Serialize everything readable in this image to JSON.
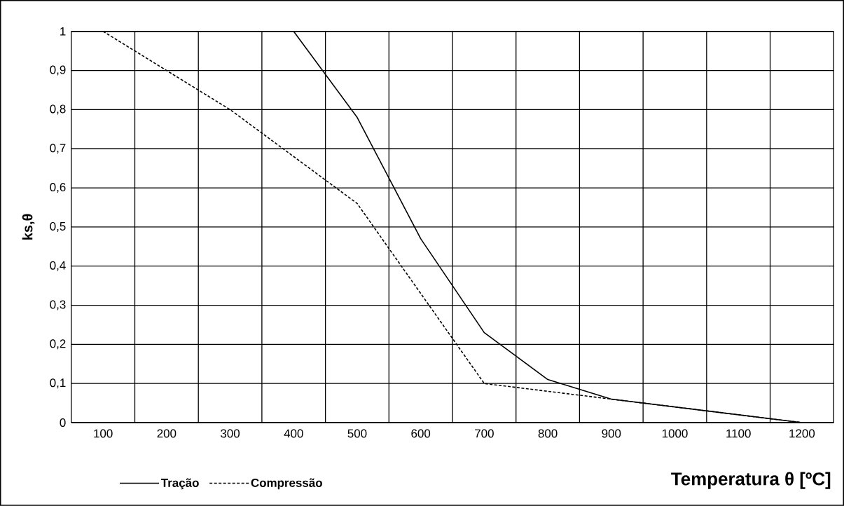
{
  "chart_data": {
    "type": "line",
    "xlabel": "Temperatura θ [ºC]",
    "ylabel": "ks,θ",
    "xlim": [
      50,
      1250
    ],
    "ylim": [
      0,
      1
    ],
    "xticks": [
      100,
      200,
      300,
      400,
      500,
      600,
      700,
      800,
      900,
      1000,
      1100,
      1200
    ],
    "yticks": [
      0,
      {
        "value": 0.1,
        "label": "0,1"
      },
      {
        "value": 0.2,
        "label": "0,2"
      },
      {
        "value": 0.3,
        "label": "0,3"
      },
      {
        "value": 0.4,
        "label": "0,4"
      },
      {
        "value": 0.5,
        "label": "0,5"
      },
      {
        "value": 0.6,
        "label": "0,6"
      },
      {
        "value": 0.7,
        "label": "0,7"
      },
      {
        "value": 0.8,
        "label": "0,8"
      },
      {
        "value": 0.9,
        "label": "0,9"
      },
      1
    ],
    "x": [
      100,
      200,
      300,
      400,
      500,
      600,
      700,
      800,
      900,
      1000,
      1100,
      1200
    ],
    "series": [
      {
        "name": "Tração",
        "color": "#000000",
        "line_style": "solid",
        "values": [
          1,
          1,
          1,
          1,
          0.78,
          0.47,
          0.23,
          0.11,
          0.06,
          0.04,
          0.02,
          0
        ]
      },
      {
        "name": "Compressão",
        "color": "#000000",
        "line_style": "dashed",
        "values": [
          1,
          0.9,
          0.8,
          0.68,
          0.56,
          0.33,
          0.1,
          0.08,
          0.06,
          0.04,
          0.02,
          0
        ]
      }
    ],
    "grid": true,
    "legend": "bottom left",
    "marker": "none"
  }
}
